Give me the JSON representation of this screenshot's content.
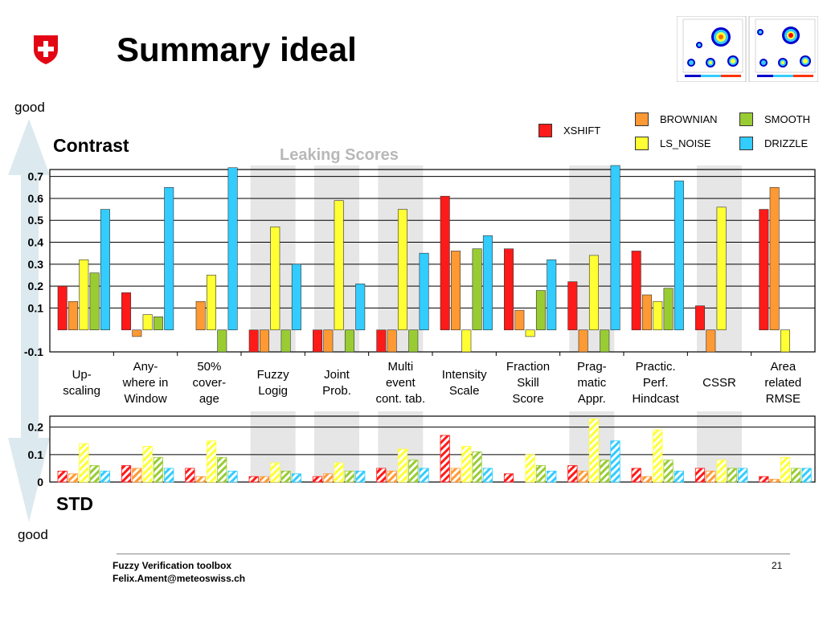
{
  "title": "Summary ideal",
  "good_top": "good",
  "good_bottom": "good",
  "contrast_label": "Contrast",
  "std_label": "STD",
  "leaking_label": "Leaking Scores",
  "legend": [
    {
      "name": "XSHIFT",
      "color": "#ff1a1a"
    },
    {
      "name": "BROWNIAN",
      "color": "#ff9933"
    },
    {
      "name": "SMOOTH",
      "color": "#99cc33"
    },
    {
      "name": "LS_NOISE",
      "color": "#ffff33"
    },
    {
      "name": "DRIZZLE",
      "color": "#33ccff"
    }
  ],
  "footer": {
    "line1": "Fuzzy Verification toolbox",
    "line2": "Felix.Ament@meteoswiss.ch",
    "page": "21"
  },
  "colors": {
    "logo_red": "#e30613",
    "leak_band": "#e6e6e6",
    "arrow": "#dceaef"
  },
  "chart_data": [
    {
      "type": "bar",
      "categories": [
        "Up-\nscaling",
        "Any-\nwhere in\nWindow",
        "50%\ncover-\nage",
        "Fuzzy\nLogig",
        "Joint\nProb.",
        "Multi\nevent\ncont. tab.",
        "Intensity\nScale",
        "Fraction\nSkill\nScore",
        "Prag-\nmatic\nAppr.",
        "Practic.\nPerf.\nHindcast",
        "CSSR",
        "Area\nrelated\nRMSE"
      ],
      "leaking_categories": [
        3,
        4,
        5,
        8,
        10
      ],
      "series": [
        {
          "name": "XSHIFT",
          "values": [
            0.2,
            0.17,
            null,
            -0.1,
            -0.1,
            -0.1,
            0.61,
            0.37,
            0.22,
            0.36,
            0.11,
            0.55
          ]
        },
        {
          "name": "BROWNIAN",
          "values": [
            0.13,
            -0.03,
            0.13,
            -0.1,
            -0.1,
            -0.1,
            0.36,
            0.09,
            -0.1,
            0.16,
            -0.1,
            0.65
          ]
        },
        {
          "name": "LS_NOISE",
          "values": [
            0.32,
            0.07,
            0.25,
            0.47,
            0.59,
            0.55,
            -0.1,
            -0.03,
            0.34,
            0.13,
            0.56,
            -0.1
          ]
        },
        {
          "name": "SMOOTH",
          "values": [
            0.26,
            0.06,
            -0.1,
            -0.1,
            -0.1,
            -0.1,
            0.37,
            0.18,
            -0.1,
            0.19,
            null,
            null
          ]
        },
        {
          "name": "DRIZZLE",
          "values": [
            0.55,
            0.65,
            0.74,
            0.3,
            0.21,
            0.35,
            0.43,
            0.32,
            0.78,
            0.68,
            null,
            null
          ]
        }
      ],
      "yticks": [
        "-0.1",
        "0.1",
        "0.2",
        "0.3",
        "0.4",
        "0.5",
        "0.6",
        "0.7"
      ],
      "ylim": [
        -0.1,
        0.75
      ]
    },
    {
      "type": "bar",
      "pattern": "hatched",
      "series": [
        {
          "name": "XSHIFT",
          "values": [
            0.04,
            0.06,
            0.05,
            0.02,
            0.02,
            0.05,
            0.17,
            0.03,
            0.06,
            0.05,
            0.05,
            0.02
          ]
        },
        {
          "name": "BROWNIAN",
          "values": [
            0.03,
            0.05,
            0.02,
            0.02,
            0.03,
            0.04,
            0.05,
            null,
            0.04,
            0.02,
            0.04,
            0.01
          ]
        },
        {
          "name": "LS_NOISE",
          "values": [
            0.14,
            0.13,
            0.15,
            0.07,
            0.07,
            0.12,
            0.13,
            0.1,
            0.23,
            0.19,
            0.08,
            0.09
          ]
        },
        {
          "name": "SMOOTH",
          "values": [
            0.06,
            0.09,
            0.09,
            0.04,
            0.04,
            0.08,
            0.11,
            0.06,
            0.08,
            0.08,
            0.05,
            0.05
          ]
        },
        {
          "name": "DRIZZLE",
          "values": [
            0.04,
            0.05,
            0.04,
            0.03,
            0.04,
            0.05,
            0.05,
            0.04,
            0.15,
            0.04,
            0.05,
            0.05
          ]
        }
      ],
      "yticks": [
        "0",
        "0.1",
        "0.2"
      ],
      "ylim": [
        0,
        0.24
      ]
    }
  ]
}
